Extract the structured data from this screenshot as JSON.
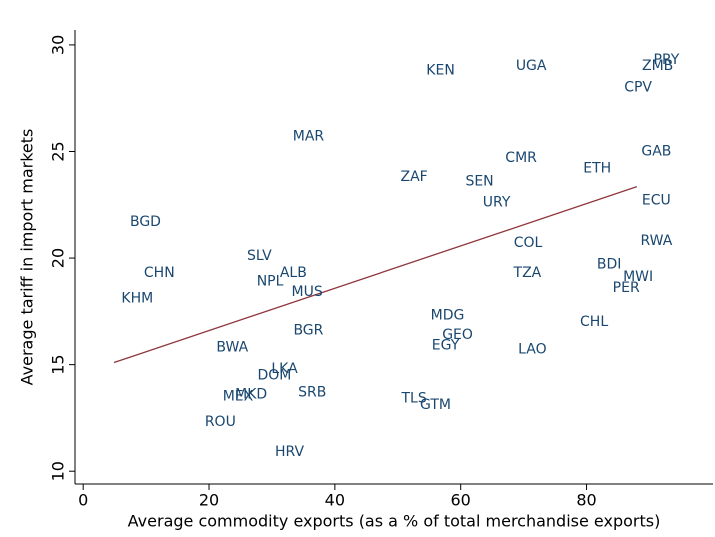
{
  "chart_data": {
    "type": "scatter",
    "xlabel": "Average commodity exports (as a % of total merchandise exports)",
    "ylabel": "Average tariff in import markets",
    "labels": [
      "KEN",
      "UGA",
      "PRY",
      "ZMB",
      "CPV",
      "MAR",
      "GAB",
      "CMR",
      "ETH",
      "ZAF",
      "SEN",
      "URY",
      "ECU",
      "BGD",
      "COL",
      "RWA",
      "SLV",
      "BDI",
      "CHN",
      "ALB",
      "TZA",
      "MWI",
      "NPL",
      "PER",
      "MUS",
      "KHM",
      "MDG",
      "CHL",
      "BGR",
      "GEO",
      "EGY",
      "BWA",
      "LAO",
      "LKA",
      "DOM",
      "SRB",
      "MKD",
      "MEX",
      "TLS",
      "GTM",
      "ROU",
      "HRV"
    ],
    "x": [
      56.8,
      71.2,
      92.7,
      91.3,
      88.2,
      35.8,
      91.1,
      69.6,
      81.7,
      52.6,
      63.0,
      65.7,
      91.1,
      9.9,
      70.7,
      91.1,
      28.0,
      83.6,
      12.1,
      33.4,
      70.6,
      88.2,
      29.7,
      86.3,
      35.6,
      8.6,
      57.9,
      81.2,
      35.8,
      59.5,
      57.6,
      23.7,
      71.4,
      32.0,
      30.4,
      36.4,
      26.7,
      24.6,
      52.6,
      56.0,
      21.8,
      32.8
    ],
    "y": [
      28.8,
      29.0,
      29.3,
      29.0,
      28.0,
      25.7,
      25.0,
      24.7,
      24.2,
      23.8,
      23.6,
      22.6,
      22.7,
      21.7,
      20.7,
      20.8,
      20.1,
      19.7,
      19.3,
      19.3,
      19.3,
      19.1,
      18.9,
      18.6,
      18.4,
      18.1,
      17.3,
      17.0,
      16.6,
      16.4,
      15.9,
      15.8,
      15.7,
      14.8,
      14.5,
      13.7,
      13.6,
      13.5,
      13.4,
      13.1,
      12.3,
      10.9
    ],
    "color": "#1a476f",
    "fit_line": {
      "x": [
        4.9,
        88.0
      ],
      "y": [
        15.1,
        23.35
      ],
      "color": "#90353b"
    },
    "xlim": [
      -1.3,
      100.1
    ],
    "ylim": [
      9.4,
      30.7
    ],
    "xticks": [
      0,
      20,
      40,
      60,
      80
    ],
    "yticks": [
      10,
      15,
      20,
      25,
      30
    ],
    "grid": false
  }
}
